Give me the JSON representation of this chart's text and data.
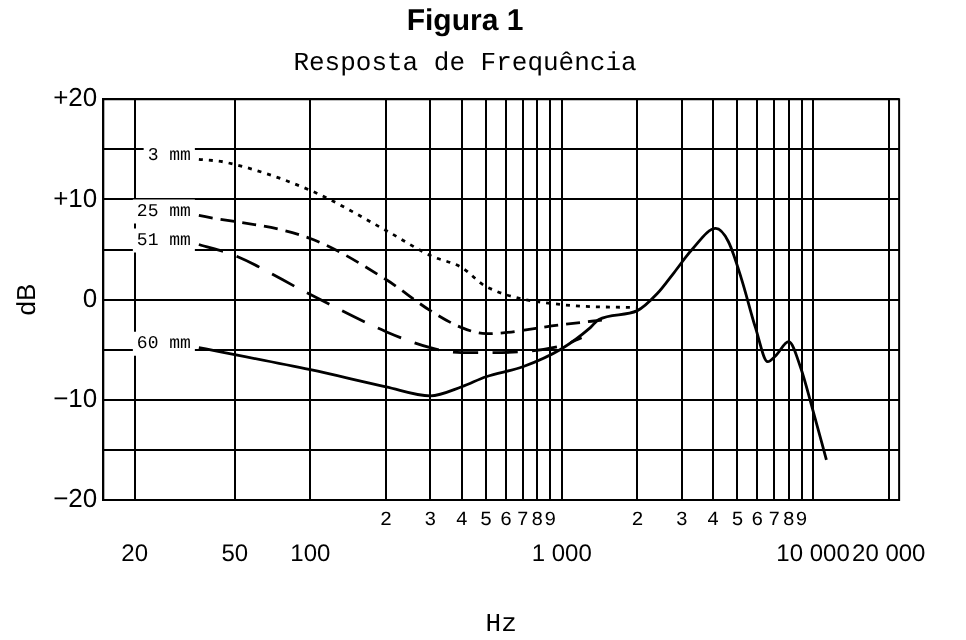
{
  "chart_data": {
    "type": "line",
    "title": "Figura 1",
    "subtitle": "Resposta de Frequência",
    "xlabel": "Hz",
    "ylabel": "dB",
    "log": "x",
    "grid": true,
    "legend": false,
    "xlim": [
      15,
      22000
    ],
    "xticks": [
      20,
      50,
      100,
      {
        "value": 200,
        "label": null
      },
      {
        "value": 300,
        "label": null
      },
      {
        "value": 400,
        "label": null
      },
      {
        "value": 500,
        "label": null
      },
      {
        "value": 600,
        "label": null
      },
      {
        "value": 700,
        "label": null
      },
      {
        "value": 800,
        "label": null
      },
      {
        "value": 900,
        "label": null
      },
      {
        "value": 1000,
        "label": "1 000"
      },
      {
        "value": 2000,
        "label": null
      },
      {
        "value": 3000,
        "label": null
      },
      {
        "value": 4000,
        "label": null
      },
      {
        "value": 5000,
        "label": null
      },
      {
        "value": 6000,
        "label": null
      },
      {
        "value": 7000,
        "label": null
      },
      {
        "value": 8000,
        "label": null
      },
      {
        "value": 9000,
        "label": null
      },
      {
        "value": 10000,
        "label": "10 000"
      },
      {
        "value": 20000,
        "label": "20 000"
      }
    ],
    "annotations": [
      "2",
      "3",
      "4",
      "5",
      "6",
      "7",
      "8",
      "9",
      "2",
      "3",
      "4",
      "5",
      "6",
      "7",
      "8",
      "9"
    ],
    "ylim": [
      -20,
      20
    ],
    "yticks": [
      {
        "value": -20,
        "label": "−20"
      },
      {
        "value": -15,
        "label": null
      },
      {
        "value": -10,
        "label": "−10"
      },
      {
        "value": -5,
        "label": null
      },
      0,
      {
        "value": 5,
        "label": null
      },
      {
        "value": 10,
        "label": "+10"
      },
      {
        "value": 15,
        "label": null
      },
      {
        "value": 20,
        "label": "+20"
      }
    ],
    "series": [
      {
        "name": "3 mm",
        "color": "#000000",
        "line_style": "dotted",
        "x": [
          36,
          46,
          100,
          200,
          300,
          400,
          500,
          1000,
          2000
        ],
        "values": [
          14,
          13.7,
          10.9,
          6.9,
          4.4,
          3.2,
          1.3,
          -0.5,
          -0.8
        ]
      },
      {
        "name": "25 mm",
        "color": "#000000",
        "line_style": "dashed",
        "x": [
          36,
          100,
          200,
          300,
          400,
          500,
          1000,
          1500
        ],
        "values": [
          8.4,
          6.1,
          2,
          -1.1,
          -2.8,
          -3.4,
          -2.5,
          -2
        ]
      },
      {
        "name": "51 mm",
        "color": "#000000",
        "line_style": "dashed",
        "x": [
          36,
          50,
          100,
          200,
          300,
          400,
          500,
          1000,
          1200
        ],
        "values": [
          5.5,
          4.4,
          0.5,
          -3.2,
          -4.8,
          -5.3,
          -5.3,
          -4.6,
          -3.8
        ]
      },
      {
        "name": "60 mm",
        "color": "#000000",
        "line_style": "solid",
        "x": [
          36,
          100,
          200,
          300,
          400,
          500,
          700,
          1000,
          1300,
          1400,
          2000,
          2400,
          2800,
          3300,
          4100,
          4600,
          5200,
          5900,
          6600,
          7100,
          8000,
          8900,
          10000,
          11300
        ],
        "values": [
          -4.8,
          -7,
          -8.7,
          -9.6,
          -8.7,
          -7.7,
          -6.7,
          -4.9,
          -2.8,
          -2,
          -1.1,
          0.6,
          2.7,
          5,
          7.1,
          5.8,
          2,
          -2.8,
          -6.2,
          -5.6,
          -4.2,
          -6.7,
          -11.1,
          -16
        ]
      }
    ]
  }
}
